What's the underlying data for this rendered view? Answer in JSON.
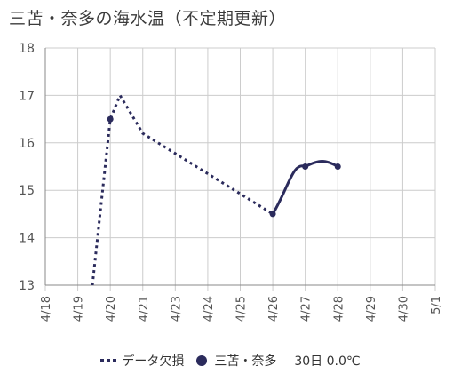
{
  "title": "三苫・奈多の海水温（不定期更新）",
  "colors": {
    "series": "#2b2b5c",
    "grid": "#cccccc",
    "axis": "#888888",
    "text": "#555555"
  },
  "chart_data": {
    "type": "line",
    "x_ticks": [
      "4/18",
      "4/19",
      "4/20",
      "4/21",
      "4/23",
      "4/24",
      "4/25",
      "4/26",
      "4/27",
      "4/28",
      "4/29",
      "4/30",
      "5/1"
    ],
    "ylim": [
      13,
      18
    ],
    "y_ticks": [
      13,
      14,
      15,
      16,
      17,
      18
    ],
    "series": [
      {
        "name": "データ欠損",
        "style": "dotted",
        "points": [
          {
            "x": "4/19 (approx.)",
            "y": 13.0
          },
          {
            "x": "4/20",
            "y": 16.5
          },
          {
            "x": "4/20 (approx.)",
            "y": 17.0
          },
          {
            "x": "4/21",
            "y": 16.2
          },
          {
            "x": "4/26",
            "y": 14.5
          }
        ]
      },
      {
        "name": "三苫・奈多",
        "style": "solid",
        "points": [
          {
            "x": "4/26",
            "y": 14.5
          },
          {
            "x": "4/27",
            "y": 15.5
          },
          {
            "x": "4/28",
            "y": 15.5
          }
        ]
      }
    ],
    "grid": true,
    "legend_position": "bottom"
  },
  "legend": {
    "missing_label": "データ欠損",
    "series_label": "三苫・奈多",
    "note": "30日 0.0℃"
  }
}
